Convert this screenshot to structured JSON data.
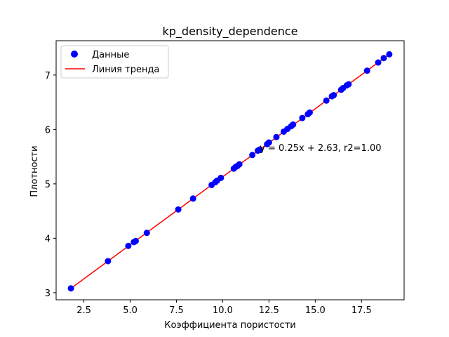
{
  "chart_data": {
    "type": "scatter",
    "title": "kp_density_dependence",
    "xlabel": "Коэффициента пористости",
    "ylabel": "Плотности",
    "xlim": [
      1.0,
      19.8
    ],
    "ylim": [
      2.87,
      7.63
    ],
    "xticks": [
      2.5,
      5.0,
      7.5,
      10.0,
      12.5,
      15.0,
      17.5
    ],
    "xtick_labels": [
      "2.5",
      "5.0",
      "7.5",
      "10.0",
      "12.5",
      "15.0",
      "17.5"
    ],
    "yticks": [
      3,
      4,
      5,
      6,
      7
    ],
    "ytick_labels": [
      "3",
      "4",
      "5",
      "6",
      "7"
    ],
    "grid": false,
    "legend_position": "upper-left",
    "series": [
      {
        "name": "Данные",
        "kind": "scatter",
        "color": "#0000ff",
        "points": [
          [
            1.8,
            3.08
          ],
          [
            3.8,
            3.58
          ],
          [
            4.9,
            3.86
          ],
          [
            5.2,
            3.93
          ],
          [
            5.3,
            3.95
          ],
          [
            5.9,
            4.1
          ],
          [
            7.6,
            4.53
          ],
          [
            8.4,
            4.73
          ],
          [
            9.4,
            4.98
          ],
          [
            9.6,
            5.03
          ],
          [
            9.7,
            5.06
          ],
          [
            9.9,
            5.11
          ],
          [
            10.6,
            5.28
          ],
          [
            10.7,
            5.31
          ],
          [
            10.8,
            5.33
          ],
          [
            10.9,
            5.36
          ],
          [
            11.6,
            5.53
          ],
          [
            11.9,
            5.61
          ],
          [
            12.0,
            5.63
          ],
          [
            12.4,
            5.73
          ],
          [
            12.5,
            5.76
          ],
          [
            12.9,
            5.86
          ],
          [
            13.3,
            5.96
          ],
          [
            13.5,
            6.01
          ],
          [
            13.7,
            6.06
          ],
          [
            13.8,
            6.09
          ],
          [
            14.3,
            6.21
          ],
          [
            14.6,
            6.28
          ],
          [
            14.7,
            6.31
          ],
          [
            15.6,
            6.53
          ],
          [
            15.9,
            6.61
          ],
          [
            16.0,
            6.63
          ],
          [
            16.4,
            6.73
          ],
          [
            16.5,
            6.76
          ],
          [
            16.7,
            6.81
          ],
          [
            16.8,
            6.83
          ],
          [
            17.8,
            7.08
          ],
          [
            18.4,
            7.23
          ],
          [
            18.7,
            7.31
          ],
          [
            19.0,
            7.38
          ]
        ]
      },
      {
        "name": "Линия тренда",
        "kind": "line",
        "color": "#ff0000",
        "slope": 0.25,
        "intercept": 2.63,
        "x_range": [
          1.8,
          19.0
        ]
      }
    ],
    "annotation": {
      "text": "y = 0.25x + 2.63, r2=1.00",
      "x": 12.0,
      "y": 5.67
    }
  }
}
